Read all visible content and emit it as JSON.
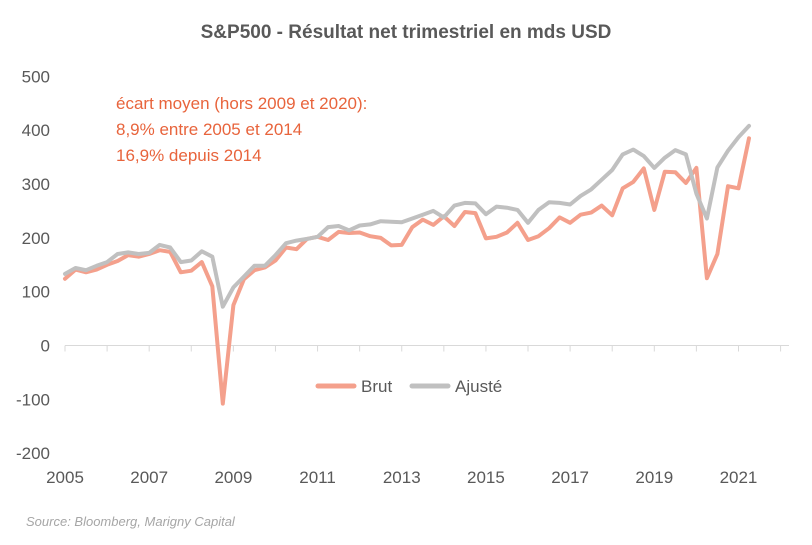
{
  "chart_data": {
    "type": "line",
    "title": "S&P500 - Résultat net trimestriel en mds USD",
    "xlabel": "",
    "ylabel": "",
    "xlim": [
      2005.0,
      2022.2
    ],
    "ylim": [
      -200,
      500
    ],
    "y_ticks": [
      500,
      400,
      300,
      200,
      100,
      0,
      -100,
      -200
    ],
    "x_ticks": [
      2005,
      2007,
      2009,
      2011,
      2013,
      2015,
      2017,
      2019,
      2021
    ],
    "annotation": [
      "écart moyen (hors 2009 et 2020):",
      "8,9% entre 2005 et 2014",
      "16,9% depuis 2014"
    ],
    "source": "Source: Bloomberg, Marigny Capital",
    "legend_position": "bottom-center",
    "series": [
      {
        "name": "Brut",
        "color": "#f4a08c",
        "x": [
          2005.0,
          2005.25,
          2005.5,
          2005.75,
          2006.0,
          2006.25,
          2006.5,
          2006.75,
          2007.0,
          2007.25,
          2007.5,
          2007.75,
          2008.0,
          2008.25,
          2008.5,
          2008.75,
          2009.0,
          2009.25,
          2009.5,
          2009.75,
          2010.0,
          2010.25,
          2010.5,
          2010.75,
          2011.0,
          2011.25,
          2011.5,
          2011.75,
          2012.0,
          2012.25,
          2012.5,
          2012.75,
          2013.0,
          2013.25,
          2013.5,
          2013.75,
          2014.0,
          2014.25,
          2014.5,
          2014.75,
          2015.0,
          2015.25,
          2015.5,
          2015.75,
          2016.0,
          2016.25,
          2016.5,
          2016.75,
          2017.0,
          2017.25,
          2017.5,
          2017.75,
          2018.0,
          2018.25,
          2018.5,
          2018.75,
          2019.0,
          2019.25,
          2019.5,
          2019.75,
          2020.0,
          2020.25,
          2020.5,
          2020.75,
          2021.0,
          2021.25
        ],
        "values": [
          124,
          141,
          136,
          141,
          150,
          157,
          168,
          165,
          170,
          177,
          174,
          136,
          139,
          155,
          110,
          -108,
          75,
          123,
          140,
          145,
          158,
          182,
          179,
          198,
          202,
          196,
          211,
          209,
          210,
          203,
          200,
          186,
          187,
          220,
          234,
          224,
          240,
          222,
          248,
          246,
          199,
          202,
          210,
          228,
          196,
          203,
          218,
          238,
          228,
          243,
          247,
          260,
          242,
          292,
          304,
          329,
          252,
          323,
          322,
          302,
          330,
          125,
          170,
          296,
          292,
          385
        ]
      },
      {
        "name": "Ajusté",
        "color": "#c0c0c0",
        "x": [
          2005.0,
          2005.25,
          2005.5,
          2005.75,
          2006.0,
          2006.25,
          2006.5,
          2006.75,
          2007.0,
          2007.25,
          2007.5,
          2007.75,
          2008.0,
          2008.25,
          2008.5,
          2008.75,
          2009.0,
          2009.25,
          2009.5,
          2009.75,
          2010.0,
          2010.25,
          2010.5,
          2010.75,
          2011.0,
          2011.25,
          2011.5,
          2011.75,
          2012.0,
          2012.25,
          2012.5,
          2012.75,
          2013.0,
          2013.25,
          2013.5,
          2013.75,
          2014.0,
          2014.25,
          2014.5,
          2014.75,
          2015.0,
          2015.25,
          2015.5,
          2015.75,
          2016.0,
          2016.25,
          2016.5,
          2016.75,
          2017.0,
          2017.25,
          2017.5,
          2017.75,
          2018.0,
          2018.25,
          2018.5,
          2018.75,
          2019.0,
          2019.25,
          2019.5,
          2019.75,
          2020.0,
          2020.25,
          2020.5,
          2020.75,
          2021.0,
          2021.25
        ],
        "values": [
          133,
          144,
          140,
          148,
          155,
          170,
          173,
          170,
          172,
          187,
          182,
          155,
          158,
          175,
          165,
          72,
          108,
          128,
          148,
          148,
          168,
          190,
          195,
          198,
          202,
          220,
          222,
          214,
          223,
          225,
          231,
          230,
          229,
          236,
          243,
          250,
          238,
          260,
          265,
          264,
          244,
          258,
          256,
          252,
          228,
          252,
          266,
          265,
          262,
          278,
          290,
          308,
          326,
          355,
          364,
          352,
          330,
          349,
          363,
          355,
          282,
          236,
          331,
          362,
          387,
          408
        ]
      }
    ]
  }
}
